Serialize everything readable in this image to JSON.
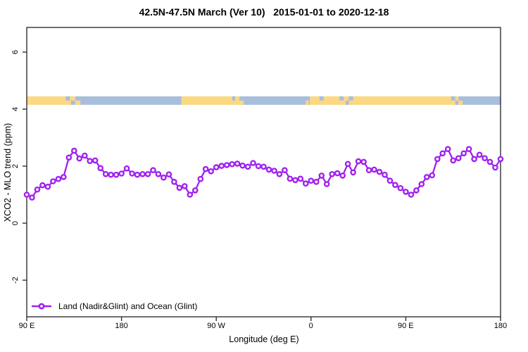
{
  "title": "42.5N-47.5N March (Ver 10)   2015-01-01 to 2020-12-18",
  "colors": {
    "line": "#a020f0",
    "marker_fill": "#ffffff",
    "land": "#fcd883",
    "ocean": "#a9bedd",
    "axis": "#303030"
  },
  "legend": {
    "label": "Land (Nadir&Glint) and Ocean (Glint)"
  },
  "chart_data": {
    "type": "line",
    "title": "42.5N-47.5N March (Ver 10)   2015-01-01 to 2020-12-18",
    "xlabel": "Longitude (deg E)",
    "ylabel": "XCO2 - MLO trend (ppm)",
    "grid": false,
    "legend_position": "bottom-left",
    "xlim_deg": [
      90,
      540
    ],
    "ylim_ppm": [
      -3.3,
      6.9
    ],
    "x_ticks": [
      {
        "deg": 90,
        "label": "90 E"
      },
      {
        "deg": 180,
        "label": "180"
      },
      {
        "deg": 270,
        "label": "90 W"
      },
      {
        "deg": 360,
        "label": "0"
      },
      {
        "deg": 450,
        "label": "90 E"
      },
      {
        "deg": 540,
        "label": "180"
      }
    ],
    "y_ticks": [
      {
        "value": 6,
        "label": "6"
      },
      {
        "value": 4,
        "label": "4"
      },
      {
        "value": 2,
        "label": "2"
      },
      {
        "value": 0,
        "label": "0"
      },
      {
        "value": -2,
        "label": "-2"
      }
    ],
    "x_start_deg": 90,
    "x_step_deg": 5,
    "series": [
      {
        "name": "Land (Nadir&Glint) and Ocean (Glint)",
        "values": [
          1.0,
          0.9,
          1.18,
          1.33,
          1.28,
          1.47,
          1.55,
          1.62,
          2.3,
          2.54,
          2.27,
          2.37,
          2.18,
          2.2,
          1.93,
          1.72,
          1.7,
          1.7,
          1.74,
          1.92,
          1.74,
          1.7,
          1.72,
          1.72,
          1.86,
          1.72,
          1.6,
          1.71,
          1.45,
          1.24,
          1.3,
          1.0,
          1.15,
          1.55,
          1.9,
          1.82,
          1.96,
          2.01,
          2.04,
          2.07,
          2.09,
          2.02,
          1.98,
          2.11,
          2.0,
          1.98,
          1.88,
          1.84,
          1.72,
          1.86,
          1.56,
          1.51,
          1.56,
          1.39,
          1.49,
          1.45,
          1.67,
          1.37,
          1.72,
          1.75,
          1.67,
          2.08,
          1.78,
          2.17,
          2.15,
          1.86,
          1.88,
          1.8,
          1.7,
          1.49,
          1.34,
          1.23,
          1.1,
          1.0,
          1.15,
          1.37,
          1.62,
          1.68,
          2.25,
          2.45,
          2.6,
          2.2,
          2.28,
          2.45,
          2.6,
          2.25,
          2.4,
          2.28,
          2.15,
          1.95,
          2.25
        ]
      }
    ],
    "surface_band": {
      "description": "land/ocean surface-type strip along latitude band",
      "y_range_ppm": [
        4.15,
        4.45
      ],
      "segments": [
        {
          "from": 90,
          "to": 136,
          "type": "land"
        },
        {
          "from": 136,
          "to": 237,
          "type": "ocean"
        },
        {
          "from": 237,
          "to": 292,
          "type": "land"
        },
        {
          "from": 292,
          "to": 359,
          "type": "ocean"
        },
        {
          "from": 359,
          "to": 500,
          "type": "land"
        },
        {
          "from": 500,
          "to": 540,
          "type": "ocean"
        }
      ],
      "patches": [
        {
          "from": 127,
          "to": 131,
          "color": "ocean",
          "v": "top"
        },
        {
          "from": 132,
          "to": 136,
          "color": "ocean",
          "v": "bottom"
        },
        {
          "from": 136,
          "to": 141,
          "color": "land",
          "v": "bottom"
        },
        {
          "from": 285,
          "to": 288,
          "color": "ocean",
          "v": "top"
        },
        {
          "from": 292,
          "to": 296,
          "color": "land",
          "v": "bottom"
        },
        {
          "from": 355,
          "to": 358,
          "color": "land",
          "v": "bottom"
        },
        {
          "from": 368,
          "to": 372,
          "color": "ocean",
          "v": "top"
        },
        {
          "from": 387,
          "to": 391,
          "color": "ocean",
          "v": "top"
        },
        {
          "from": 393,
          "to": 396,
          "color": "ocean",
          "v": "bottom"
        },
        {
          "from": 396,
          "to": 400,
          "color": "ocean",
          "v": "top"
        },
        {
          "from": 493,
          "to": 497,
          "color": "ocean",
          "v": "top"
        },
        {
          "from": 497,
          "to": 500,
          "color": "ocean",
          "v": "bottom"
        },
        {
          "from": 500,
          "to": 504,
          "color": "land",
          "v": "bottom"
        }
      ]
    }
  }
}
